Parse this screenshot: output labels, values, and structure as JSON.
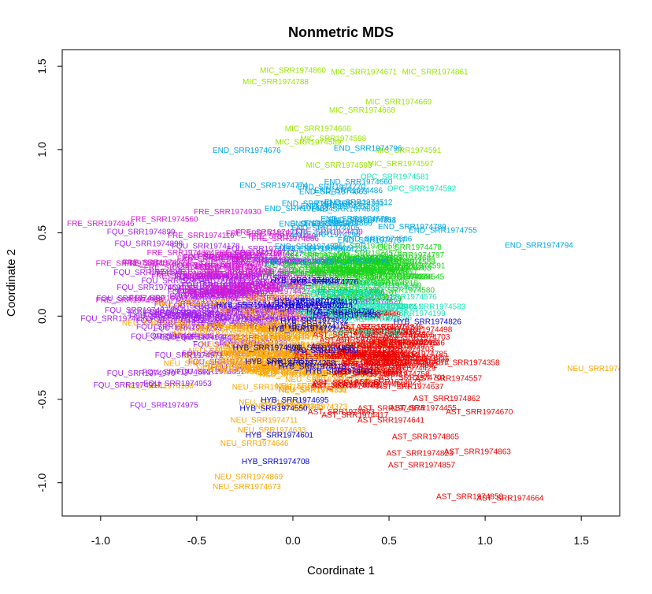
{
  "chart_data": {
    "type": "scatter",
    "title": "Nonmetric MDS",
    "xlabel": "Coordinate 1",
    "ylabel": "Coordinate 2",
    "xlim": [
      -1.2,
      1.7
    ],
    "ylim": [
      -1.2,
      1.6
    ],
    "xticks": [
      -1.0,
      -0.5,
      0.0,
      0.5,
      1.0,
      1.5
    ],
    "yticks": [
      -1.0,
      -0.5,
      0.0,
      0.5,
      1.0,
      1.5
    ],
    "xtick_labels": [
      "-1.0",
      "-0.5",
      "0.0",
      "0.5",
      "1.0",
      "1.5"
    ],
    "ytick_labels": [
      "-1.0",
      "-0.5",
      "0.0",
      "0.5",
      "1.0",
      "1.5"
    ],
    "grid": false,
    "legend": "none",
    "groups": {
      "MIC": "#99e600",
      "END": "#00a6e6",
      "OPC": "#1ae6b3",
      "OLI": "#1ad41a",
      "FRE": "#d41ad4",
      "FQU": "#a020f0",
      "NEU": "#ffa500",
      "HYB": "#0000d4",
      "AST": "#ee0000"
    },
    "points": [
      {
        "label": "MIC_SRR1974860",
        "group": "MIC",
        "x": 0.0,
        "y": 1.48
      },
      {
        "label": "MIC_SRR1974671",
        "group": "MIC",
        "x": 0.37,
        "y": 1.47
      },
      {
        "label": "MIC_SRR1974861",
        "group": "MIC",
        "x": 0.74,
        "y": 1.47
      },
      {
        "label": "MIC_SRR1974788",
        "group": "MIC",
        "x": -0.09,
        "y": 1.41
      },
      {
        "label": "MIC_SRR1974669",
        "group": "MIC",
        "x": 0.55,
        "y": 1.29
      },
      {
        "label": "MIC_SRR1974668",
        "group": "MIC",
        "x": 0.36,
        "y": 1.24
      },
      {
        "label": "MIC_SRR1974666",
        "group": "MIC",
        "x": 0.13,
        "y": 1.13
      },
      {
        "label": "MIC_SRR1974598",
        "group": "MIC",
        "x": 0.21,
        "y": 1.07
      },
      {
        "label": "MIC_SRR1974589",
        "group": "MIC",
        "x": 0.08,
        "y": 1.05
      },
      {
        "label": "MIC_SRR1974591",
        "group": "MIC",
        "x": 0.6,
        "y": 1.0
      },
      {
        "label": "MIC_SRR1974597",
        "group": "MIC",
        "x": 0.56,
        "y": 0.92
      },
      {
        "label": "MIC_SRR1974593",
        "group": "MIC",
        "x": 0.24,
        "y": 0.91
      },
      {
        "label": "END_SRR1974676",
        "group": "END",
        "x": -0.24,
        "y": 1.0
      },
      {
        "label": "END_SRR1974796",
        "group": "END",
        "x": 0.39,
        "y": 1.01
      },
      {
        "label": "END_SRR1974774",
        "group": "END",
        "x": -0.1,
        "y": 0.79
      },
      {
        "label": "END_SRR1974660",
        "group": "END",
        "x": 0.34,
        "y": 0.81
      },
      {
        "label": "END_SRR1974770",
        "group": "END",
        "x": 0.2,
        "y": 0.78
      },
      {
        "label": "END_SRR1974665",
        "group": "END",
        "x": 0.21,
        "y": 0.75
      },
      {
        "label": "END_SRR1974768",
        "group": "END",
        "x": 0.12,
        "y": 0.68
      },
      {
        "label": "END_SRR1974644",
        "group": "END",
        "x": 0.03,
        "y": 0.65
      },
      {
        "label": "END_SRR1974758",
        "group": "END",
        "x": 0.36,
        "y": 0.58
      },
      {
        "label": "END_SRR1974789",
        "group": "END",
        "x": 0.62,
        "y": 0.54
      },
      {
        "label": "END_SRR1974755",
        "group": "END",
        "x": 0.78,
        "y": 0.52
      },
      {
        "label": "END_SRR1974757",
        "group": "END",
        "x": 0.41,
        "y": 0.46
      },
      {
        "label": "END_SRR1974794",
        "group": "END",
        "x": 1.28,
        "y": 0.43
      },
      {
        "label": "OPC_SRR1974581",
        "group": "OPC",
        "x": 0.53,
        "y": 0.84
      },
      {
        "label": "OPC_SRR1974592",
        "group": "OPC",
        "x": 0.67,
        "y": 0.77
      },
      {
        "label": "OPC_SRR1974576",
        "group": "OPC",
        "x": 0.57,
        "y": 0.12
      },
      {
        "label": "OPC_SRR1974583",
        "group": "OPC",
        "x": 0.72,
        "y": 0.06
      },
      {
        "label": "OLI_SRR1974797",
        "group": "OLI",
        "x": 0.62,
        "y": 0.37
      },
      {
        "label": "OLI_SRR1974545",
        "group": "OLI",
        "x": 0.62,
        "y": 0.24
      },
      {
        "label": "OLI_SRR1974580",
        "group": "OLI",
        "x": 0.57,
        "y": 0.16
      },
      {
        "label": "FRE_SRR1974946",
        "group": "FRE",
        "x": -1.0,
        "y": 0.56
      },
      {
        "label": "FRE_SRR1974930",
        "group": "FRE",
        "x": -0.34,
        "y": 0.63
      },
      {
        "label": "FRE_SRR1974886",
        "group": "FRE",
        "x": -0.04,
        "y": 0.47
      },
      {
        "label": "FRE_SRR1974914",
        "group": "FRE",
        "x": -0.85,
        "y": 0.32
      },
      {
        "label": "FRE_SRR1974938",
        "group": "FRE",
        "x": -0.85,
        "y": 0.1
      },
      {
        "label": "FQU_SRR1974899",
        "group": "FQU",
        "x": -0.79,
        "y": 0.51
      },
      {
        "label": "FQU_SRR1974898",
        "group": "FQU",
        "x": -0.75,
        "y": 0.44
      },
      {
        "label": "FQU_SRR1974971",
        "group": "FQU",
        "x": -0.54,
        "y": -0.23
      },
      {
        "label": "FQU_SRR1974970",
        "group": "FQU",
        "x": -0.79,
        "y": -0.34
      },
      {
        "label": "FQU_SRR1974953",
        "group": "FQU",
        "x": -0.6,
        "y": -0.4
      },
      {
        "label": "FQU_SRR1974917",
        "group": "FQU",
        "x": -0.86,
        "y": -0.41
      },
      {
        "label": "FQU_SRR1974975",
        "group": "FQU",
        "x": -0.67,
        "y": -0.53
      },
      {
        "label": "NEU_SRR1974711",
        "group": "NEU",
        "x": -0.15,
        "y": -0.62
      },
      {
        "label": "NEU_SRR1974633",
        "group": "NEU",
        "x": -0.11,
        "y": -0.68
      },
      {
        "label": "NEU_SRR1974646",
        "group": "NEU",
        "x": -0.2,
        "y": -0.76
      },
      {
        "label": "NEU_SRR1974869",
        "group": "NEU",
        "x": -0.23,
        "y": -0.96
      },
      {
        "label": "NEU_SRR1974673",
        "group": "NEU",
        "x": -0.24,
        "y": -1.02
      },
      {
        "label": "NEU_SRR1974",
        "group": "NEU",
        "x": 1.57,
        "y": -0.31
      },
      {
        "label": "HYB_SRR1974826",
        "group": "HYB",
        "x": 0.7,
        "y": -0.03
      },
      {
        "label": "HYB_SRR1974850",
        "group": "HYB",
        "x": 0.28,
        "y": 0.01
      },
      {
        "label": "HYB_SRR1974833",
        "group": "HYB",
        "x": 0.06,
        "y": 0.22
      },
      {
        "label": "HYB_SRR1974695",
        "group": "HYB",
        "x": 0.01,
        "y": -0.5
      },
      {
        "label": "HYB_SRR1974550",
        "group": "HYB",
        "x": -0.1,
        "y": -0.55
      },
      {
        "label": "HYB_SRR1974601",
        "group": "HYB",
        "x": -0.07,
        "y": -0.71
      },
      {
        "label": "HYB_SRR1974708",
        "group": "HYB",
        "x": -0.09,
        "y": -0.87
      },
      {
        "label": "AST_SRR1974871",
        "group": "AST",
        "x": 0.64,
        "y": -0.27
      },
      {
        "label": "AST_SRR1974557",
        "group": "AST",
        "x": 0.81,
        "y": -0.37
      },
      {
        "label": "AST_SRR1974637",
        "group": "AST",
        "x": 0.61,
        "y": -0.42
      },
      {
        "label": "AST_SRR1974862",
        "group": "AST",
        "x": 0.8,
        "y": -0.49
      },
      {
        "label": "AST_SRR1974874",
        "group": "AST",
        "x": 0.51,
        "y": -0.55
      },
      {
        "label": "AST_SRR1974670",
        "group": "AST",
        "x": 0.97,
        "y": -0.57
      },
      {
        "label": "AST_SRR1974641",
        "group": "AST",
        "x": 0.51,
        "y": -0.62
      },
      {
        "label": "AST_SRR1974865",
        "group": "AST",
        "x": 0.69,
        "y": -0.72
      },
      {
        "label": "AST_SRR1974823",
        "group": "AST",
        "x": 0.66,
        "y": -0.82
      },
      {
        "label": "AST_SRR1974863",
        "group": "AST",
        "x": 0.96,
        "y": -0.81
      },
      {
        "label": "AST_SRR1974857",
        "group": "AST",
        "x": 0.67,
        "y": -0.89
      },
      {
        "label": "AST_SRR1974858",
        "group": "AST",
        "x": 0.92,
        "y": -1.08
      },
      {
        "label": "AST_SRR1974664",
        "group": "AST",
        "x": 1.13,
        "y": -1.09
      }
    ],
    "clusters": [
      {
        "group": "FQU",
        "cx": -0.35,
        "cy": 0.08,
        "sx": 0.28,
        "sy": 0.17,
        "n": 90,
        "label": "FQU_SRR1974"
      },
      {
        "group": "FRE",
        "cx": -0.33,
        "cy": 0.28,
        "sx": 0.22,
        "sy": 0.12,
        "n": 45,
        "label": "FRE_SRR1974"
      },
      {
        "group": "NEU",
        "cx": -0.05,
        "cy": -0.2,
        "sx": 0.19,
        "sy": 0.14,
        "n": 80,
        "label": "NEU_SRR1974"
      },
      {
        "group": "OLI",
        "cx": 0.3,
        "cy": 0.27,
        "sx": 0.14,
        "sy": 0.09,
        "n": 60,
        "label": "OLI_SRR1974"
      },
      {
        "group": "AST",
        "cx": 0.41,
        "cy": -0.23,
        "sx": 0.15,
        "sy": 0.12,
        "n": 65,
        "label": "AST_SRR1974"
      },
      {
        "group": "OPC",
        "cx": 0.33,
        "cy": 0.08,
        "sx": 0.12,
        "sy": 0.08,
        "n": 20,
        "label": "OPC_SRR1974"
      },
      {
        "group": "HYB",
        "cx": 0.12,
        "cy": -0.1,
        "sx": 0.12,
        "sy": 0.17,
        "n": 18,
        "label": "HYB_SRR1974"
      },
      {
        "group": "END",
        "cx": 0.2,
        "cy": 0.52,
        "sx": 0.15,
        "sy": 0.1,
        "n": 18,
        "label": "END_SRR1974"
      }
    ]
  }
}
